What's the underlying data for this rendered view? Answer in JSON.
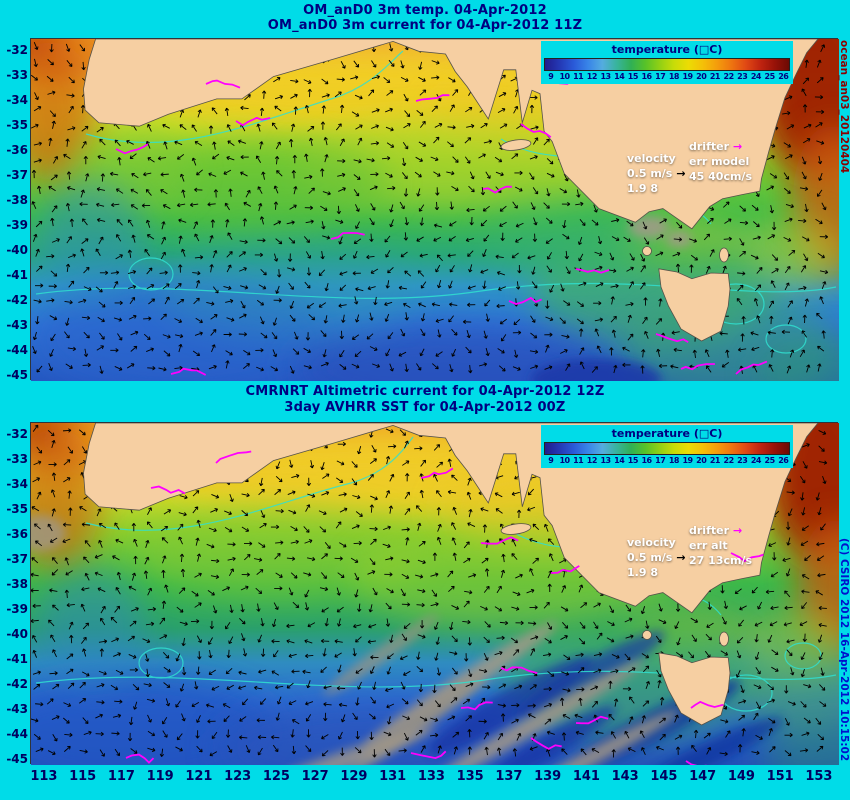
{
  "top_panel": {
    "title1": "OM_anD0 3m temp. 04-Apr-2012",
    "title2": "OM_anD0 3m current for 04-Apr-2012 11Z",
    "velocity": {
      "label": "velocity",
      "scale": "0.5 m/s",
      "max": "1.9 8"
    },
    "drifter": {
      "label": "drifter",
      "err_label": "err model",
      "err_value": "45 40cm/s"
    }
  },
  "bottom_panel": {
    "title1": "CMRNRT Altimetric current for 04-Apr-2012 12Z",
    "title2": "3day AVHRR SST for 04-Apr-2012 00Z",
    "velocity": {
      "label": "velocity",
      "scale": "0.5 m/s",
      "max": "1.9 8"
    },
    "drifter": {
      "label": "drifter",
      "err_label": "err alt",
      "err_value": "27 13cm/s"
    }
  },
  "legend": {
    "title": "temperature (□C)",
    "ticks": [
      "9",
      "10",
      "11",
      "12",
      "13",
      "14",
      "15",
      "16",
      "17",
      "18",
      "19",
      "20",
      "21",
      "22",
      "23",
      "24",
      "25",
      "26"
    ],
    "colormap": [
      "#201c8c",
      "#2438b4",
      "#2a5ad8",
      "#3884e8",
      "#54ace0",
      "#38b49c",
      "#30b054",
      "#58c228",
      "#92d014",
      "#c8dc08",
      "#ecdc04",
      "#f4c008",
      "#f49c0c",
      "#ee7410",
      "#e04814",
      "#c02410",
      "#981208",
      "#6c0a04"
    ]
  },
  "axes": {
    "y_ticks": [
      "-32",
      "-33",
      "-34",
      "-35",
      "-36",
      "-37",
      "-38",
      "-39",
      "-40",
      "-41",
      "-42",
      "-43",
      "-44",
      "-45"
    ],
    "x_ticks": [
      "113",
      "115",
      "117",
      "119",
      "121",
      "123",
      "125",
      "127",
      "129",
      "131",
      "133",
      "135",
      "137",
      "139",
      "141",
      "143",
      "145",
      "147",
      "149",
      "151",
      "153"
    ]
  },
  "watermarks": {
    "top_right": "ocean_an03_20120404",
    "bottom_right": "(C) CSIRO 2012  16-Apr-2012 10:15:02"
  },
  "map_colors": {
    "background": "#00dce8",
    "land": "#f6cfa2",
    "coastline": "#55524a",
    "arrow": "#000000",
    "drifter_track": "#ff00ff",
    "ssh_contour": "#30e0d0",
    "cloud": "#a59a86",
    "title_text": "#000080",
    "axis_text": "#000060",
    "legend_text": "#ffffff"
  }
}
